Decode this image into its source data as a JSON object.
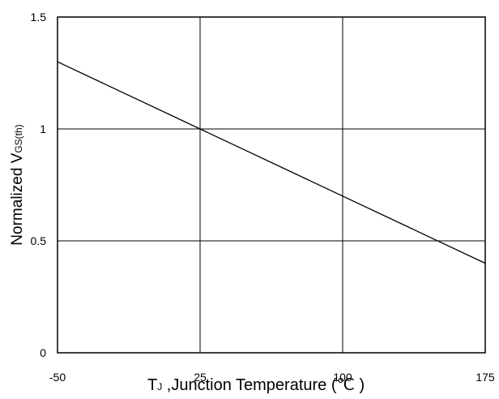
{
  "chart_data": {
    "type": "line",
    "xlabel_main": "T",
    "xlabel_sub": "J",
    "xlabel_rest": " ,Junction Temperature (℃ )",
    "ylabel_main": "Normalized V",
    "ylabel_sub": "GS(th)",
    "xlim": [
      -50,
      175
    ],
    "ylim": [
      0,
      1.5
    ],
    "xticks": [
      -50,
      25,
      100,
      175
    ],
    "xtick_labels": [
      "-50",
      "25",
      "100",
      "175"
    ],
    "yticks": [
      0,
      0.5,
      1,
      1.5
    ],
    "ytick_labels": [
      "0",
      "0.5",
      "1",
      "1.5"
    ],
    "grid": true,
    "series": [
      {
        "x": [
          -50,
          175
        ],
        "y": [
          1.3,
          0.4
        ]
      }
    ]
  }
}
